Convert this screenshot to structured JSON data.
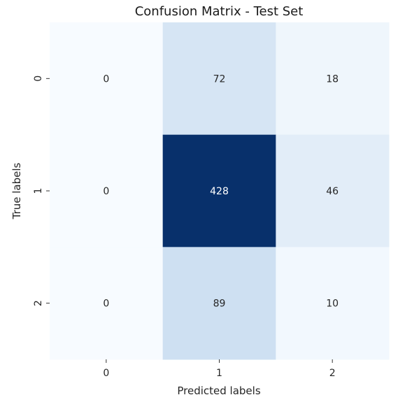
{
  "chart_data": {
    "type": "heatmap",
    "title": "Confusion Matrix - Test Set",
    "xlabel": "Predicted labels",
    "ylabel": "True labels",
    "x_categories": [
      "0",
      "1",
      "2"
    ],
    "y_categories": [
      "0",
      "1",
      "2"
    ],
    "values": [
      [
        0,
        72,
        18
      ],
      [
        0,
        428,
        46
      ],
      [
        0,
        89,
        10
      ]
    ],
    "colormap": "Blues",
    "color_range": [
      0,
      428
    ],
    "colorbar": false,
    "annotations": true
  }
}
